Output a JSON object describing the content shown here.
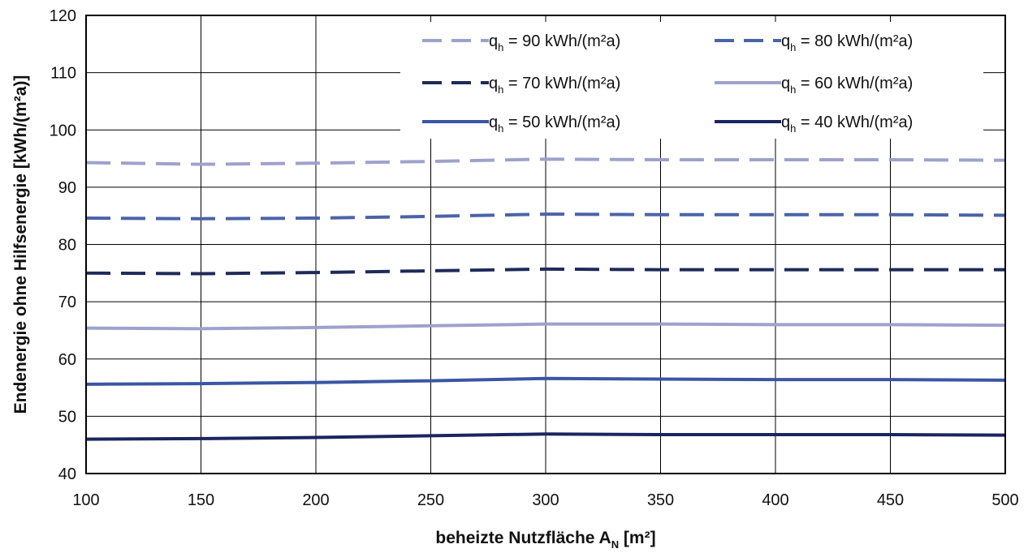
{
  "chart_data": {
    "type": "line",
    "xlabel": {
      "main": "beheizte Nutzfläche A",
      "sub": "N",
      "unit": " [m²]"
    },
    "ylabel": "Endenergie ohne Hilfsenergie [kWh/(m²a)]",
    "xlim": [
      100,
      500
    ],
    "ylim": [
      40,
      120
    ],
    "xticks": [
      "100",
      "150",
      "200",
      "250",
      "300",
      "350",
      "400",
      "450",
      "500"
    ],
    "yticks": [
      "40",
      "50",
      "60",
      "70",
      "80",
      "90",
      "100",
      "110",
      "120"
    ],
    "grid": true,
    "legend_position": "top-right",
    "x": [
      100,
      150,
      200,
      250,
      300,
      350,
      400,
      450,
      500
    ],
    "series": [
      {
        "name": "q",
        "sub": "h",
        "rest": " = 90 kWh/(m²a)",
        "color": "#9fa1cd",
        "dashed": true,
        "values": [
          94.3,
          94.0,
          94.2,
          94.5,
          94.9,
          94.8,
          94.8,
          94.8,
          94.7
        ]
      },
      {
        "name": "q",
        "sub": "h",
        "rest": " = 80 kWh/(m²a)",
        "color": "#4a64a8",
        "dashed": true,
        "values": [
          84.6,
          84.5,
          84.6,
          84.9,
          85.3,
          85.2,
          85.2,
          85.2,
          85.1
        ]
      },
      {
        "name": "q",
        "sub": "h",
        "rest": " = 70 kWh/(m²a)",
        "color": "#1e2a5a",
        "dashed": true,
        "values": [
          75.0,
          74.9,
          75.1,
          75.4,
          75.7,
          75.6,
          75.6,
          75.6,
          75.6
        ]
      },
      {
        "name": "q",
        "sub": "h",
        "rest": " = 60 kWh/(m²a)",
        "color": "#9fa1cd",
        "dashed": false,
        "values": [
          65.4,
          65.3,
          65.5,
          65.8,
          66.1,
          66.1,
          66.0,
          66.0,
          65.9
        ]
      },
      {
        "name": "q",
        "sub": "h",
        "rest": " = 50 kWh/(m²a)",
        "color": "#3a56a4",
        "dashed": false,
        "values": [
          55.6,
          55.7,
          55.9,
          56.2,
          56.6,
          56.5,
          56.4,
          56.4,
          56.3
        ]
      },
      {
        "name": "q",
        "sub": "h",
        "rest": " = 40 kWh/(m²a)",
        "color": "#1a2560",
        "dashed": false,
        "values": [
          46.0,
          46.1,
          46.3,
          46.6,
          46.9,
          46.8,
          46.8,
          46.8,
          46.7
        ]
      }
    ]
  }
}
